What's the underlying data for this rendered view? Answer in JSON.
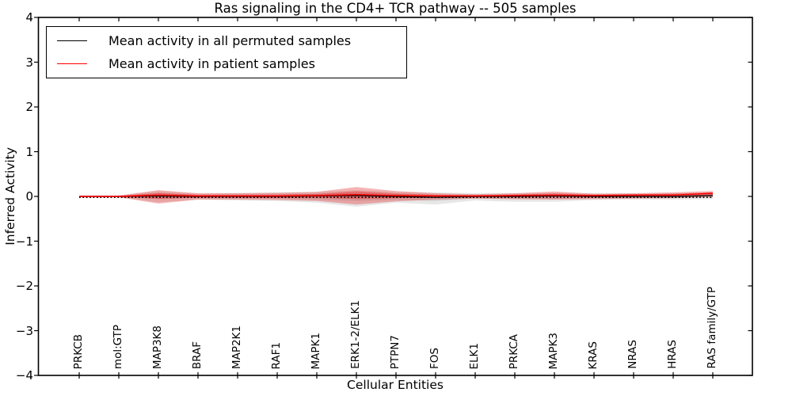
{
  "chart_data": {
    "type": "line",
    "title": "Ras signaling in the CD4+ TCR pathway -- 505 samples",
    "xlabel": "Cellular Entities",
    "ylabel": "Inferred Activity",
    "ylim": [
      -4,
      4
    ],
    "y_tick_labels": [
      "4",
      "3",
      "2",
      "1",
      "0",
      "−1",
      "−2",
      "−3",
      "−4"
    ],
    "y_tick_values": [
      4,
      3,
      2,
      1,
      0,
      -1,
      -2,
      -3,
      -4
    ],
    "grid": false,
    "legend_position": "upper left",
    "zero_reference_line": {
      "value": 0,
      "style": "dotted",
      "color": "#000000"
    },
    "categories": [
      "PRKCB",
      "mol:GTP",
      "MAP3K8",
      "BRAF",
      "MAP2K1",
      "RAF1",
      "MAPK1",
      "ERK1-2/ELK1",
      "PTPN7",
      "FOS",
      "ELK1",
      "PRKCA",
      "MAPK3",
      "KRAS",
      "NRAS",
      "HRAS",
      "RAS family/GTP"
    ],
    "series": [
      {
        "name": "Mean activity in all permuted samples",
        "color": "#000000",
        "band_color": "#909090",
        "values": [
          0,
          0,
          0.01,
          0,
          0,
          0,
          0.01,
          0.02,
          0,
          -0.02,
          0,
          0,
          0.01,
          0,
          0,
          0,
          0.02
        ],
        "band_upper": [
          0.02,
          0.02,
          0.12,
          0.06,
          0.08,
          0.09,
          0.1,
          0.14,
          0.1,
          0.09,
          0.07,
          0.07,
          0.08,
          0.07,
          0.06,
          0.07,
          0.08
        ],
        "band_lower": [
          -0.02,
          -0.02,
          -0.13,
          -0.07,
          -0.09,
          -0.1,
          -0.14,
          -0.23,
          -0.14,
          -0.18,
          -0.09,
          -0.12,
          -0.12,
          -0.08,
          -0.07,
          -0.07,
          -0.06
        ]
      },
      {
        "name": "Mean activity in patient samples",
        "color": "#ff0000",
        "band_color": "#e41a1c",
        "values": [
          0,
          0,
          0.03,
          0.01,
          0.01,
          0.01,
          0.02,
          0.04,
          0.02,
          0.01,
          0.01,
          0.02,
          0.03,
          0.02,
          0.03,
          0.03,
          0.07
        ],
        "band_upper": [
          0.02,
          0.02,
          0.14,
          0.07,
          0.07,
          0.08,
          0.1,
          0.21,
          0.12,
          0.07,
          0.05,
          0.07,
          0.11,
          0.06,
          0.07,
          0.09,
          0.12
        ],
        "band_lower": [
          -0.02,
          -0.02,
          -0.16,
          -0.07,
          -0.07,
          -0.08,
          -0.1,
          -0.18,
          -0.11,
          -0.07,
          -0.05,
          -0.06,
          -0.07,
          -0.06,
          -0.05,
          -0.04,
          -0.01
        ]
      }
    ]
  }
}
